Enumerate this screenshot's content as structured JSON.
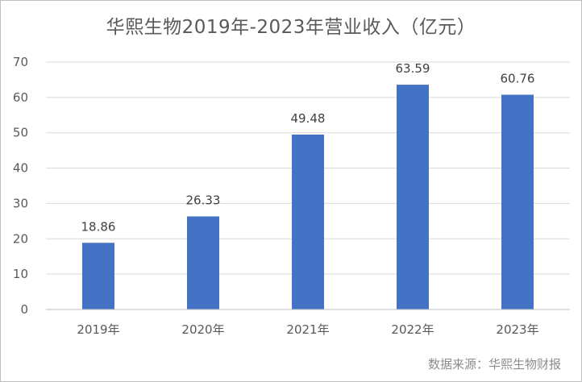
{
  "chart_data": {
    "type": "bar",
    "title": "华熙生物2019年-2023年营业收入（亿元）",
    "categories": [
      "2019年",
      "2020年",
      "2021年",
      "2022年",
      "2023年"
    ],
    "values": [
      18.86,
      26.33,
      49.48,
      63.59,
      60.76
    ],
    "data_labels": [
      "18.86",
      "26.33",
      "49.48",
      "63.59",
      "60.76"
    ],
    "ylim": [
      0,
      70
    ],
    "yticks": [
      0,
      10,
      20,
      30,
      40,
      50,
      60,
      70
    ],
    "xlabel": "",
    "ylabel": "",
    "grid": true,
    "legend": "none",
    "bar_color": "#4472c4",
    "grid_color": "#d9d9d9",
    "axis_color": "#bfbfbf",
    "text_color": "#595959"
  },
  "source_note": "数据来源：华熙生物财报"
}
